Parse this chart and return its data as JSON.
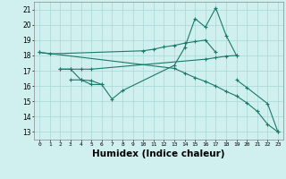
{
  "x": [
    0,
    1,
    2,
    3,
    4,
    5,
    6,
    7,
    8,
    9,
    10,
    11,
    12,
    13,
    14,
    15,
    16,
    17,
    18,
    19,
    20,
    21,
    22,
    23
  ],
  "line1": [
    18.2,
    18.1,
    null,
    null,
    null,
    null,
    null,
    null,
    null,
    null,
    18.3,
    18.4,
    18.55,
    18.65,
    18.8,
    18.9,
    19.0,
    18.2,
    null,
    null,
    null,
    null,
    null,
    null
  ],
  "line2": [
    null,
    null,
    17.1,
    17.1,
    17.1,
    17.1,
    null,
    null,
    null,
    null,
    null,
    null,
    null,
    null,
    null,
    null,
    17.75,
    17.85,
    17.95,
    18.0,
    null,
    null,
    null,
    null
  ],
  "line3": [
    null,
    null,
    null,
    null,
    null,
    null,
    null,
    null,
    null,
    null,
    null,
    null,
    null,
    null,
    null,
    null,
    null,
    null,
    null,
    null,
    null,
    null,
    null,
    null
  ],
  "line4_zigzag": [
    null,
    null,
    null,
    16.4,
    16.4,
    16.1,
    16.1,
    15.15,
    15.7,
    null,
    null,
    null,
    null,
    17.35,
    18.5,
    20.4,
    19.85,
    21.1,
    19.3,
    18.0,
    null,
    null,
    null,
    null
  ],
  "line5_diagonal": [
    18.2,
    null,
    null,
    null,
    null,
    null,
    null,
    null,
    null,
    null,
    null,
    null,
    null,
    null,
    null,
    null,
    null,
    null,
    null,
    null,
    null,
    null,
    null,
    null
  ],
  "line_flat_lower": [
    null,
    null,
    17.1,
    17.1,
    16.4,
    16.35,
    16.1,
    null,
    null,
    null,
    null,
    null,
    null,
    null,
    null,
    null,
    null,
    null,
    null,
    null,
    null,
    null,
    null,
    null
  ],
  "line_down_long": [
    18.2,
    null,
    null,
    null,
    null,
    null,
    null,
    null,
    null,
    null,
    null,
    null,
    null,
    17.15,
    16.85,
    16.55,
    16.3,
    16.0,
    15.65,
    15.35,
    14.9,
    14.35,
    13.5,
    13.0
  ],
  "line_end_drop": [
    null,
    null,
    null,
    null,
    null,
    null,
    null,
    null,
    null,
    null,
    null,
    null,
    null,
    null,
    null,
    null,
    null,
    null,
    null,
    16.4,
    15.9,
    null,
    14.85,
    13.0
  ],
  "color": "#1a7a6a",
  "bg_color": "#d0efef",
  "grid_color": "#a8d8d8",
  "xlabel": "Humidex (Indice chaleur)",
  "xlabel_fontsize": 7.5,
  "ylabel_ticks": [
    13,
    14,
    15,
    16,
    17,
    18,
    19,
    20,
    21
  ],
  "xlim": [
    -0.5,
    23.5
  ],
  "ylim": [
    12.5,
    21.5
  ]
}
